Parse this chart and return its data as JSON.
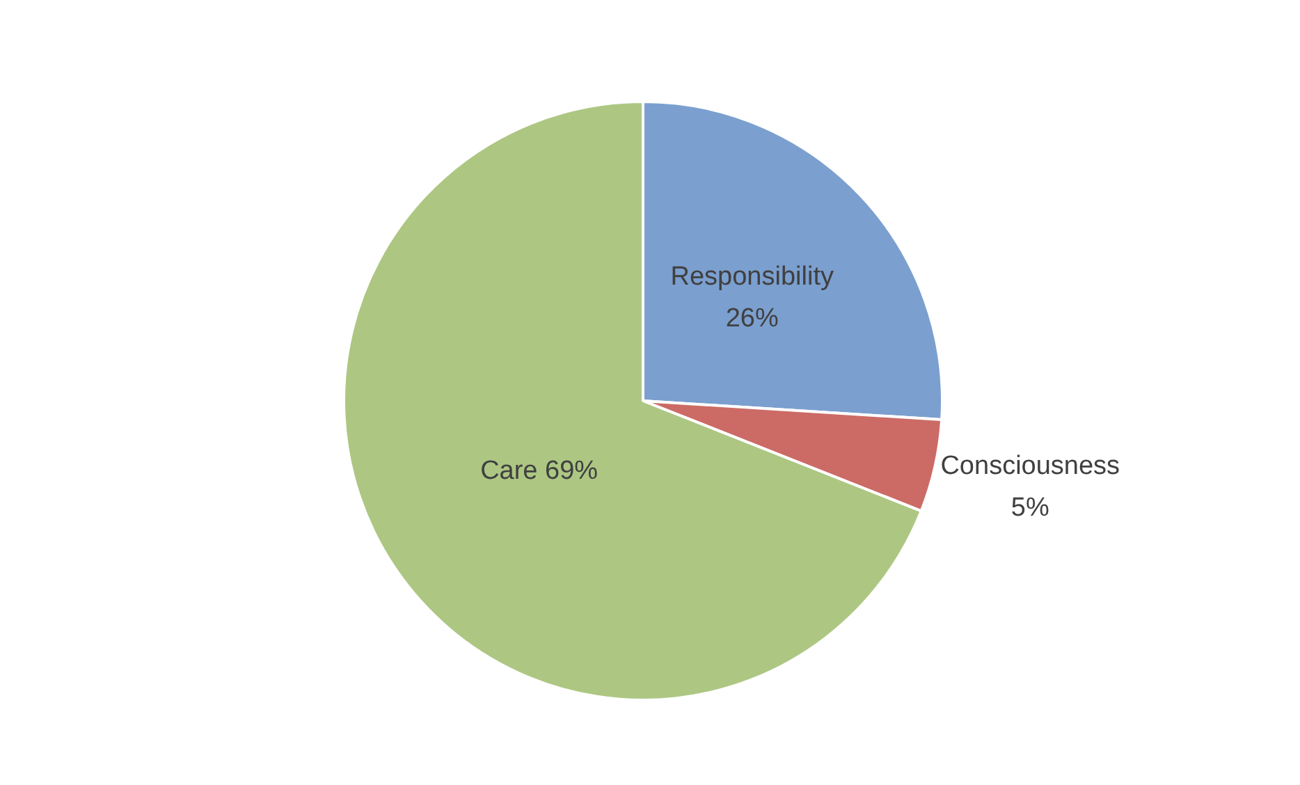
{
  "chart_data": {
    "type": "pie",
    "categories": [
      "Responsibility",
      "Consciousness",
      "Care"
    ],
    "values": [
      26,
      5,
      69
    ],
    "value_labels": [
      "26%",
      "5%",
      "69%"
    ],
    "colors": [
      "#7b9fcf",
      "#cc6b66",
      "#adc783"
    ],
    "legend": false
  }
}
